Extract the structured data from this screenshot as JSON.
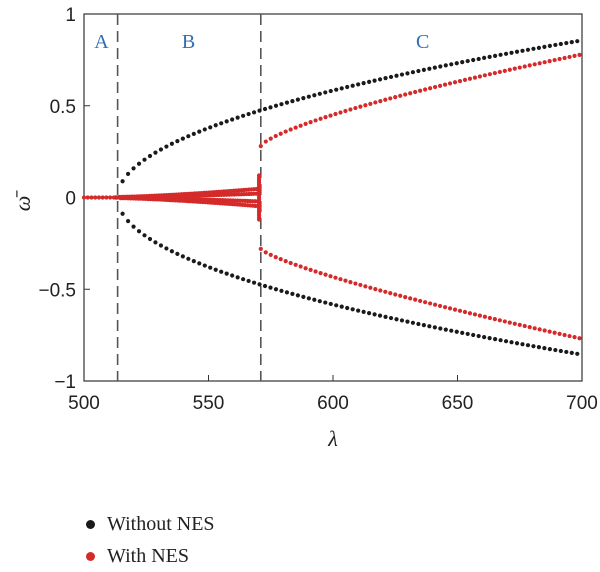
{
  "chart_data": {
    "type": "scatter",
    "xlabel": "λ",
    "ylabel": "ω̄",
    "xlim": [
      500,
      700
    ],
    "ylim": [
      -1,
      1
    ],
    "x_ticks": [
      500,
      550,
      600,
      650,
      700
    ],
    "y_ticks": [
      1,
      0.5,
      0,
      -0.5,
      -1
    ],
    "y_tick_labels": [
      "1",
      "0.5",
      "0",
      "−0.5",
      "−1"
    ],
    "grid": false,
    "legend_position": "bottom-left",
    "boundaries": [
      513.5,
      571
    ],
    "regions": [
      {
        "label": "A",
        "x": 507
      },
      {
        "label": "B",
        "x": 542
      },
      {
        "label": "C",
        "x": 636
      }
    ],
    "series": [
      {
        "name": "Without NES",
        "color": "#1a1a1a",
        "description_model": "omega = ±sqrt(lambda - 513.5) for lambda > 513.5, 0 otherwise"
      },
      {
        "name": "With NES",
        "color": "#d42a2a"
      }
    ],
    "sample_points": {
      "without_nes": [
        [
          500,
          0
        ],
        [
          513,
          0
        ],
        [
          520,
          0.19
        ],
        [
          550,
          0.36
        ],
        [
          571,
          0.46
        ],
        [
          600,
          0.59
        ],
        [
          650,
          0.73
        ],
        [
          700,
          0.85
        ],
        [
          520,
          -0.19
        ],
        [
          550,
          -0.36
        ],
        [
          571,
          -0.46
        ],
        [
          600,
          -0.59
        ],
        [
          650,
          -0.73
        ],
        [
          700,
          -0.85
        ]
      ],
      "with_nes": [
        [
          500,
          0
        ],
        [
          513,
          0
        ],
        [
          530,
          0.02
        ],
        [
          550,
          0.04
        ],
        [
          565,
          0.06
        ],
        [
          570,
          0.09
        ],
        [
          571,
          0.28
        ],
        [
          600,
          0.46
        ],
        [
          650,
          0.63
        ],
        [
          700,
          0.78
        ],
        [
          571,
          -0.28
        ],
        [
          600,
          -0.44
        ],
        [
          650,
          -0.61
        ],
        [
          700,
          -0.77
        ]
      ]
    }
  }
}
